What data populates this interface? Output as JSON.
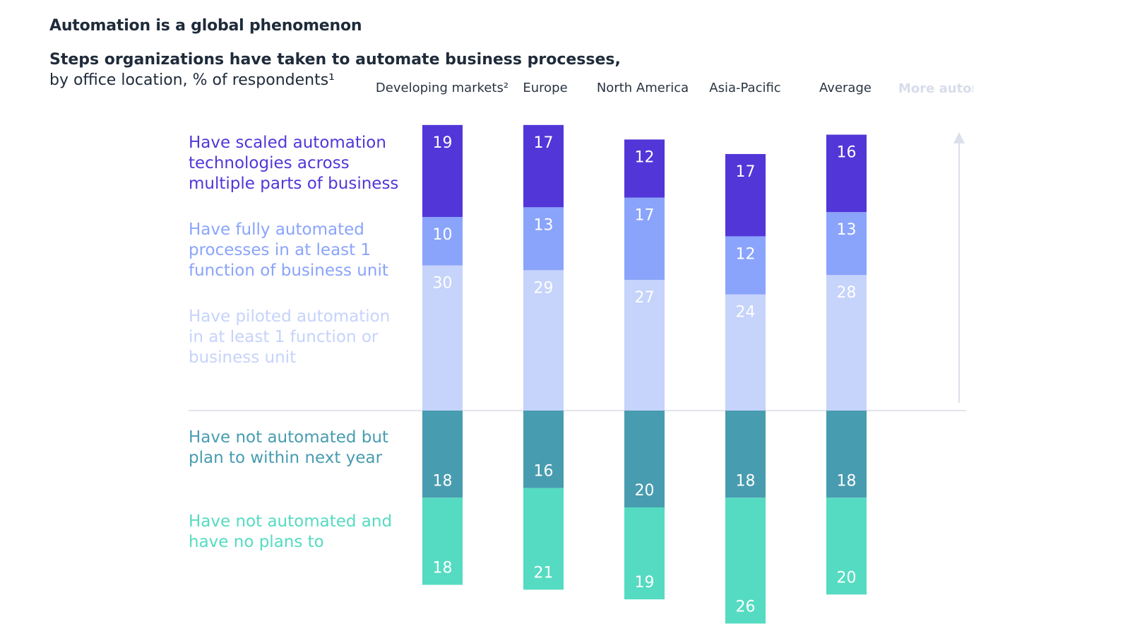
{
  "title": "Automation is a global phenomenon",
  "subtitle_line1": "Steps organizations have taken to automate business processes,",
  "subtitle_line2": "by office location, % of respondents¹",
  "axis_note": "More automation",
  "chart_data": {
    "type": "bar",
    "stacked": true,
    "diverging": true,
    "categories": [
      "Developing markets²",
      "Europe",
      "North America",
      "Asia-Pacific",
      "Average"
    ],
    "series": [
      {
        "name": "Have scaled automation technologies across multiple parts of business",
        "color": "#5236d8",
        "direction": "up",
        "values": [
          19,
          17,
          12,
          17,
          16
        ]
      },
      {
        "name": "Have fully automated processes in at least 1 function of business unit",
        "color": "#8aa4fb",
        "direction": "up",
        "values": [
          10,
          13,
          17,
          12,
          13
        ]
      },
      {
        "name": "Have piloted automation in at least 1 function or business unit",
        "color": "#c6d3fb",
        "direction": "up",
        "values": [
          30,
          29,
          27,
          24,
          28
        ]
      },
      {
        "name": "Have not automated but plan to within next year",
        "color": "#489cb0",
        "direction": "down",
        "values": [
          18,
          16,
          20,
          18,
          18
        ]
      },
      {
        "name": "Have not automated and have no plans to",
        "color": "#55dbc1",
        "direction": "down",
        "values": [
          18,
          21,
          19,
          26,
          20
        ]
      }
    ],
    "legend_placement": "left",
    "grid": false
  }
}
